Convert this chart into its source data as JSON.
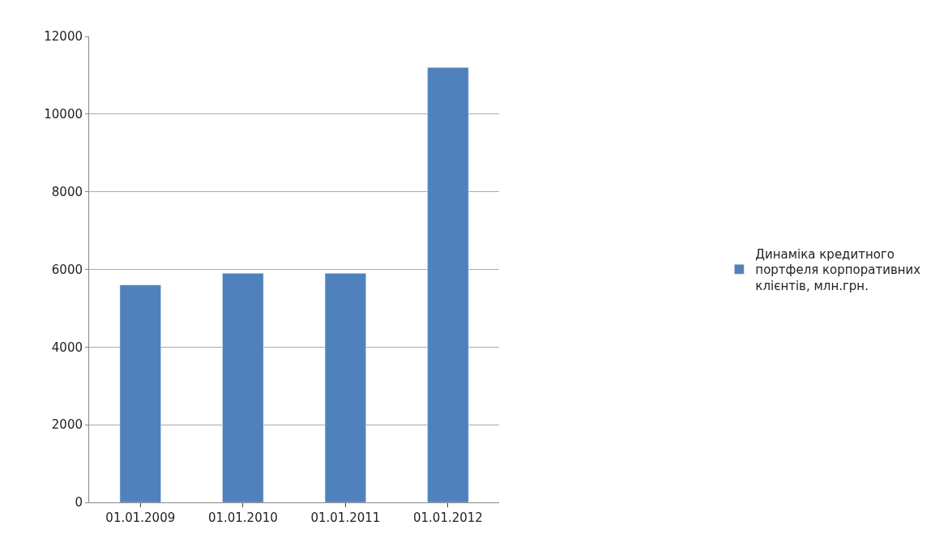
{
  "chart_data": {
    "type": "bar",
    "categories": [
      "01.01.2009",
      "01.01.2010",
      "01.01.2011",
      "01.01.2012"
    ],
    "series": [
      {
        "name": "Динаміка кредитного портфеля корпоративних клієнтів, млн.грн.",
        "color": "#4f81bd",
        "values": [
          5600,
          5900,
          5900,
          11200
        ]
      }
    ],
    "ylim": [
      0,
      12000
    ],
    "yticks": [
      0,
      2000,
      4000,
      6000,
      8000,
      10000,
      12000
    ],
    "grid": "y",
    "legend": "right"
  }
}
